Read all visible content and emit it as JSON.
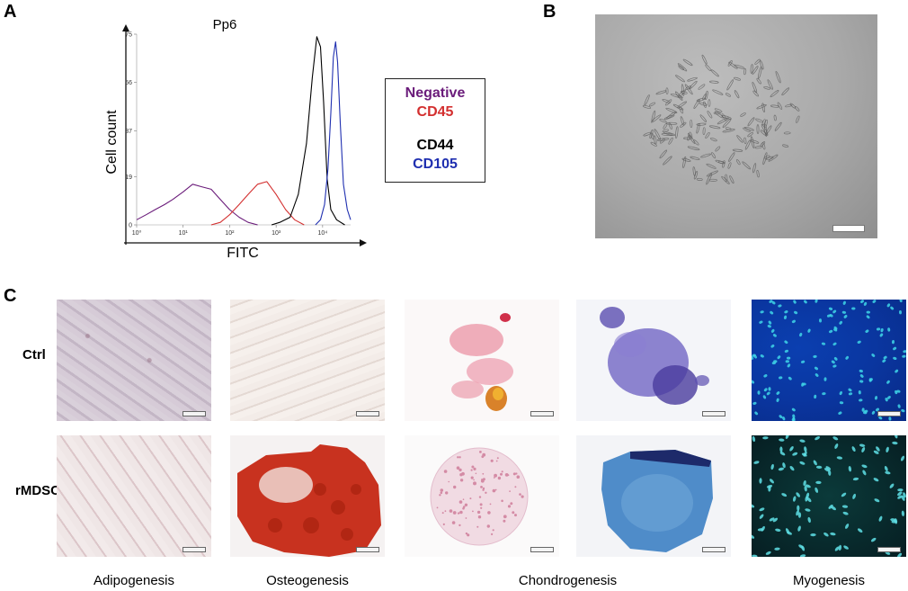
{
  "panel_a": {
    "letter": "A",
    "title": "Pp6",
    "ylabel": "Cell count",
    "xlabel": "FITC",
    "y_ticks": [
      "0",
      "19",
      "37",
      "56",
      "75"
    ],
    "x_ticks": [
      "10⁰",
      "10¹",
      "10²",
      "10³",
      "10⁴"
    ],
    "legend": [
      {
        "label": "Negative",
        "color": "#6a1b7a"
      },
      {
        "label": "CD45",
        "color": "#d32f2f"
      },
      {
        "label": "CD44",
        "color": "#000000"
      },
      {
        "label": "CD105",
        "color": "#1f2fb0"
      }
    ]
  },
  "chart_data": {
    "type": "line",
    "title": "Pp6",
    "xlabel": "FITC",
    "ylabel": "Cell count",
    "x_scale": "log",
    "xlim": [
      1,
      40000
    ],
    "ylim": [
      0,
      75
    ],
    "x_ticks": [
      1,
      10,
      100,
      1000,
      10000
    ],
    "y_ticks": [
      0,
      19,
      37,
      56,
      75
    ],
    "series": [
      {
        "name": "Negative",
        "color": "#6a1b7a",
        "x": [
          1,
          1.6,
          2.5,
          4,
          6,
          10,
          16,
          25,
          40,
          63,
          100,
          160,
          250,
          400
        ],
        "y": [
          2,
          4,
          6,
          8,
          10,
          13,
          16,
          15,
          14,
          10,
          6,
          3,
          1,
          0
        ]
      },
      {
        "name": "CD45",
        "color": "#d32f2f",
        "x": [
          40,
          63,
          100,
          160,
          250,
          400,
          630,
          1000,
          1600,
          2500,
          4000
        ],
        "y": [
          0,
          1,
          4,
          8,
          12,
          16,
          17,
          12,
          6,
          2,
          0
        ]
      },
      {
        "name": "CD44",
        "color": "#000000",
        "x": [
          800,
          1200,
          2000,
          3000,
          4500,
          6000,
          7500,
          9000,
          10500,
          12500,
          15000,
          20000,
          30000
        ],
        "y": [
          0,
          1,
          3,
          12,
          32,
          58,
          74,
          70,
          48,
          18,
          6,
          2,
          0
        ]
      },
      {
        "name": "CD105",
        "color": "#1f2fb0",
        "x": [
          7000,
          9000,
          11000,
          13000,
          15000,
          17000,
          19000,
          21000,
          24000,
          28000,
          34000,
          40000
        ],
        "y": [
          0,
          2,
          8,
          22,
          44,
          66,
          72,
          64,
          40,
          16,
          6,
          2
        ]
      }
    ]
  },
  "panel_b": {
    "letter": "B"
  },
  "panel_c": {
    "letter": "C",
    "rows": [
      "Ctrl",
      "rMDSC"
    ],
    "columns": [
      "Adipogenesis",
      "Osteogenesis",
      "Chondrogenesis",
      "Myogenesis"
    ]
  }
}
